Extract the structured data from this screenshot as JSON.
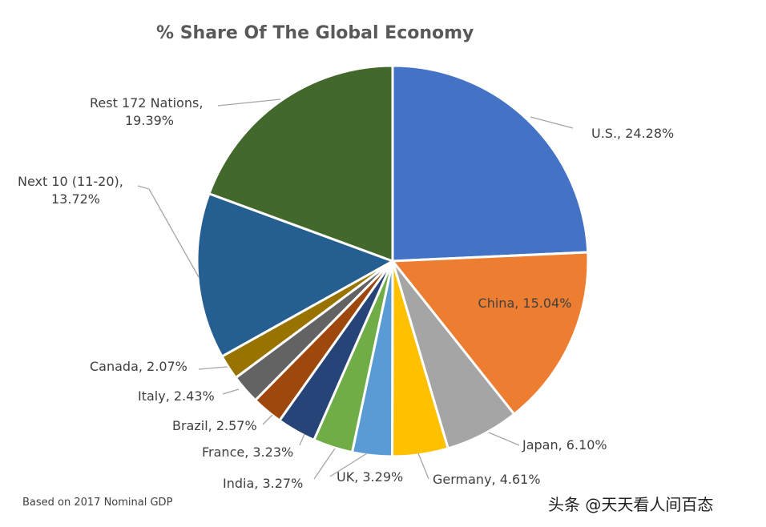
{
  "chart_data": {
    "type": "pie",
    "title": "% Share Of The Global Economy",
    "footnote": "Based on 2017 Nominal GDP",
    "slices": [
      {
        "label": "U.S., 24.28%",
        "name": "U.S.",
        "value": 24.28,
        "color": "#4472c4"
      },
      {
        "label": "China, 15.04%",
        "name": "China",
        "value": 15.04,
        "color": "#ed7d31"
      },
      {
        "label": "Japan, 6.10%",
        "name": "Japan",
        "value": 6.1,
        "color": "#a5a5a5"
      },
      {
        "label": "Germany, 4.61%",
        "name": "Germany",
        "value": 4.61,
        "color": "#ffc000"
      },
      {
        "label": "UK, 3.29%",
        "name": "UK",
        "value": 3.29,
        "color": "#5b9bd5"
      },
      {
        "label": "India, 3.27%",
        "name": "India",
        "value": 3.27,
        "color": "#70ad47"
      },
      {
        "label": "France, 3.23%",
        "name": "France",
        "value": 3.23,
        "color": "#264478"
      },
      {
        "label": "Brazil, 2.57%",
        "name": "Brazil",
        "value": 2.57,
        "color": "#9e480e"
      },
      {
        "label": "Italy, 2.43%",
        "name": "Italy",
        "value": 2.43,
        "color": "#636363"
      },
      {
        "label": "Canada, 2.07%",
        "name": "Canada",
        "value": 2.07,
        "color": "#997300"
      },
      {
        "label": "Next 10 (11-20), 13.72%",
        "name": "Next 10 (11-20)",
        "value": 13.72,
        "color": "#255e91"
      },
      {
        "label": "Rest 172 Nations, 19.39%",
        "name": "Rest 172 Nations",
        "value": 19.39,
        "color": "#43682b"
      }
    ],
    "start_angle": "12 o'clock",
    "direction": "clockwise",
    "legend": "none"
  },
  "watermark": {
    "text": "头条 @天天看人间百态"
  }
}
